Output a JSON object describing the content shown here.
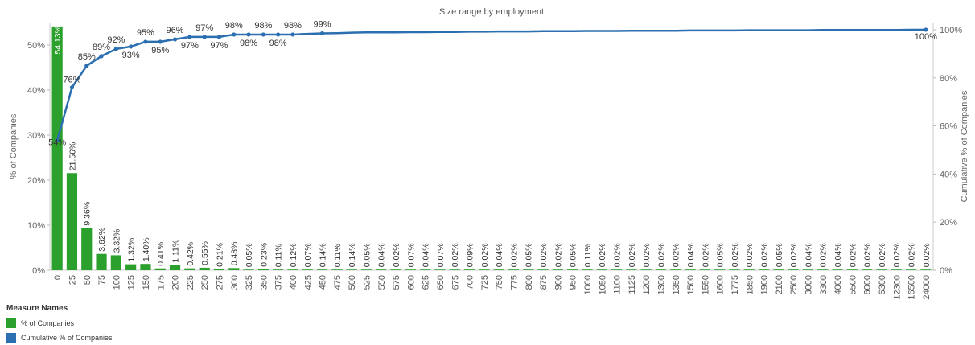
{
  "chart_data": {
    "type": "bar",
    "title": "Size range by employment",
    "ylabel": "% of Companies",
    "y2label": "Cumulative % of Companies",
    "xlabel": "",
    "ylim": [
      0,
      55
    ],
    "y2lim": [
      0,
      103
    ],
    "yticks": [
      "0%",
      "10%",
      "20%",
      "30%",
      "40%",
      "50%"
    ],
    "y2ticks": [
      "0%",
      "20%",
      "40%",
      "60%",
      "80%",
      "100%"
    ],
    "categories": [
      "0",
      "25",
      "50",
      "75",
      "100",
      "125",
      "150",
      "175",
      "200",
      "225",
      "250",
      "275",
      "300",
      "325",
      "350",
      "375",
      "400",
      "425",
      "450",
      "475",
      "500",
      "525",
      "550",
      "575",
      "600",
      "625",
      "650",
      "675",
      "700",
      "725",
      "750",
      "775",
      "800",
      "875",
      "900",
      "950",
      "1000",
      "1050",
      "1100",
      "1125",
      "1200",
      "1300",
      "1350",
      "1500",
      "1550",
      "1600",
      "1775",
      "1850",
      "1900",
      "2100",
      "2500",
      "3000",
      "3300",
      "4000",
      "5500",
      "6000",
      "6300",
      "12300",
      "16500",
      "24000"
    ],
    "series": [
      {
        "name": "% of Companies",
        "type": "bar",
        "color": "#2ca02c",
        "values": [
          54.13,
          21.56,
          9.36,
          3.62,
          3.32,
          1.32,
          1.4,
          0.41,
          1.11,
          0.42,
          0.55,
          0.21,
          0.48,
          0.05,
          0.23,
          0.11,
          0.12,
          0.07,
          0.14,
          0.11,
          0.14,
          0.05,
          0.04,
          0.02,
          0.07,
          0.04,
          0.07,
          0.02,
          0.09,
          0.02,
          0.04,
          0.02,
          0.05,
          0.02,
          0.02,
          0.05,
          0.11,
          0.02,
          0.02,
          0.02,
          0.02,
          0.02,
          0.02,
          0.04,
          0.02,
          0.05,
          0.02,
          0.02,
          0.02,
          0.05,
          0.02,
          0.04,
          0.02,
          0.04,
          0.02,
          0.02,
          0.02,
          0.02,
          0.02,
          0.02
        ],
        "labels": [
          "54.13%",
          "21.56%",
          "9.36%",
          "3.62%",
          "3.32%",
          "1.32%",
          "1.40%",
          "0.41%",
          "1.11%",
          "0.42%",
          "0.55%",
          "0.21%",
          "0.48%",
          "0.05%",
          "0.23%",
          "0.11%",
          "0.12%",
          "0.07%",
          "0.14%",
          "0.11%",
          "0.14%",
          "0.05%",
          "0.04%",
          "0.02%",
          "0.07%",
          "0.04%",
          "0.07%",
          "0.02%",
          "0.09%",
          "0.02%",
          "0.04%",
          "0.02%",
          "0.05%",
          "0.02%",
          "0.02%",
          "0.05%",
          "0.11%",
          "0.02%",
          "0.02%",
          "0.02%",
          "0.02%",
          "0.02%",
          "0.02%",
          "0.04%",
          "0.02%",
          "0.05%",
          "0.02%",
          "0.02%",
          "0.02%",
          "0.05%",
          "0.02%",
          "0.04%",
          "0.02%",
          "0.04%",
          "0.02%",
          "0.02%",
          "0.02%",
          "0.02%",
          "0.02%",
          "0.02%"
        ]
      },
      {
        "name": "Cumulative % of Companies",
        "type": "line",
        "color": "#2b6fb0",
        "axis": "right",
        "values": [
          54,
          76,
          85,
          89,
          92,
          93,
          95,
          95,
          96,
          97,
          97,
          97,
          98,
          98,
          98,
          98,
          98,
          98.3,
          98.5,
          98.6,
          98.8,
          98.9,
          98.9,
          98.9,
          99,
          99,
          99.1,
          99.1,
          99.2,
          99.2,
          99.3,
          99.3,
          99.3,
          99.4,
          99.4,
          99.4,
          99.5,
          99.5,
          99.5,
          99.6,
          99.6,
          99.6,
          99.6,
          99.7,
          99.7,
          99.7,
          99.7,
          99.8,
          99.8,
          99.8,
          99.8,
          99.8,
          99.9,
          99.9,
          99.9,
          99.9,
          99.9,
          99.9,
          100,
          100
        ],
        "labels": [
          {
            "i": 0,
            "text": "54%"
          },
          {
            "i": 1,
            "text": "76%"
          },
          {
            "i": 2,
            "text": "85%"
          },
          {
            "i": 3,
            "text": "89%"
          },
          {
            "i": 4,
            "text": "92%"
          },
          {
            "i": 5,
            "text": "93%"
          },
          {
            "i": 6,
            "text": "95%"
          },
          {
            "i": 7,
            "text": "95%"
          },
          {
            "i": 8,
            "text": "96%"
          },
          {
            "i": 9,
            "text": "97%"
          },
          {
            "i": 10,
            "text": "97%"
          },
          {
            "i": 11,
            "text": "97%"
          },
          {
            "i": 12,
            "text": "98%"
          },
          {
            "i": 13,
            "text": "98%"
          },
          {
            "i": 14,
            "text": "98%"
          },
          {
            "i": 15,
            "text": "98%"
          },
          {
            "i": 16,
            "text": "98%"
          },
          {
            "i": 18,
            "text": "99%"
          },
          {
            "i": 59,
            "text": "100%"
          }
        ]
      }
    ],
    "grid": false,
    "legend_position": "bottom-left"
  },
  "legend": {
    "title": "Measure Names",
    "items": [
      {
        "label": "% of Companies",
        "color": "#2ca02c"
      },
      {
        "label": "Cumulative % of Companies",
        "color": "#2b6fb0"
      }
    ]
  }
}
